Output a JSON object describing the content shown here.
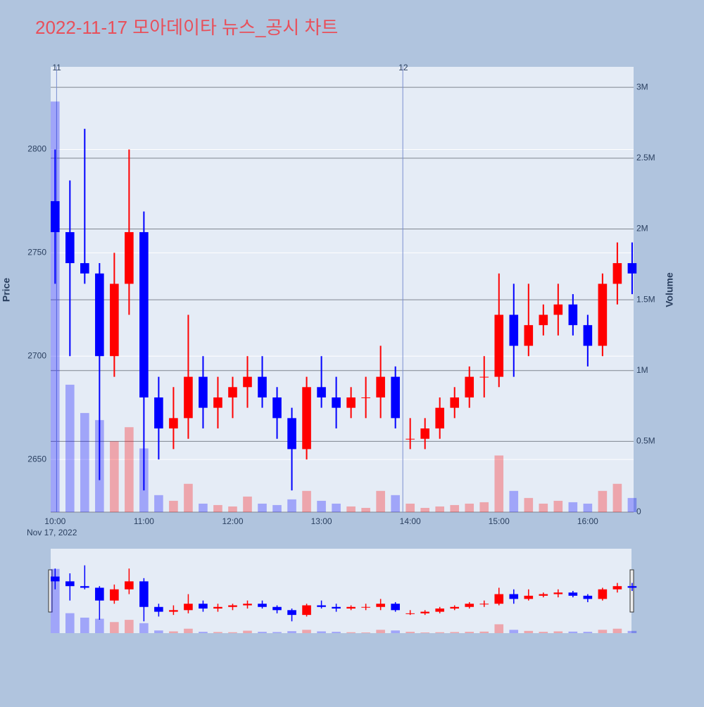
{
  "chart_data": {
    "type": "candlestick",
    "title": "2022-11-17 모아데이타 뉴스_공시 차트",
    "y_title": "Price",
    "y2_title": "Volume",
    "x_date_label": "Nov 17, 2022",
    "x": [
      "2022-11-17 10:00",
      "2022-11-17 10:10",
      "2022-11-17 10:20",
      "2022-11-17 10:30",
      "2022-11-17 10:40",
      "2022-11-17 10:50",
      "2022-11-17 11:00",
      "2022-11-17 11:10",
      "2022-11-17 11:20",
      "2022-11-17 11:30",
      "2022-11-17 11:40",
      "2022-11-17 11:50",
      "2022-11-17 12:00",
      "2022-11-17 12:10",
      "2022-11-17 12:20",
      "2022-11-17 12:30",
      "2022-11-17 12:40",
      "2022-11-17 12:50",
      "2022-11-17 13:00",
      "2022-11-17 13:10",
      "2022-11-17 13:20",
      "2022-11-17 13:30",
      "2022-11-17 13:40",
      "2022-11-17 13:50",
      "2022-11-17 14:00",
      "2022-11-17 14:10",
      "2022-11-17 14:20",
      "2022-11-17 14:30",
      "2022-11-17 14:40",
      "2022-11-17 14:50",
      "2022-11-17 15:00",
      "2022-11-17 15:10",
      "2022-11-17 15:20",
      "2022-11-17 15:30",
      "2022-11-17 15:40",
      "2022-11-17 15:50",
      "2022-11-17 16:00",
      "2022-11-17 16:10",
      "2022-11-17 16:20",
      "2022-11-17 16:30"
    ],
    "open": [
      2775,
      2760,
      2745,
      2740,
      2700,
      2735,
      2760,
      2680,
      2665,
      2670,
      2690,
      2675,
      2680,
      2685,
      2690,
      2680,
      2670,
      2655,
      2685,
      2680,
      2675,
      2680,
      2680,
      2690,
      2660,
      2660,
      2665,
      2675,
      2680,
      2690,
      2690,
      2720,
      2705,
      2715,
      2720,
      2725,
      2715,
      2705,
      2735,
      2745
    ],
    "high": [
      2800,
      2785,
      2810,
      2745,
      2750,
      2800,
      2770,
      2690,
      2685,
      2720,
      2700,
      2690,
      2690,
      2700,
      2700,
      2685,
      2675,
      2690,
      2700,
      2690,
      2685,
      2690,
      2705,
      2695,
      2670,
      2670,
      2680,
      2685,
      2695,
      2700,
      2740,
      2735,
      2735,
      2725,
      2735,
      2730,
      2720,
      2740,
      2755,
      2755
    ],
    "low": [
      2735,
      2700,
      2735,
      2640,
      2690,
      2720,
      2635,
      2650,
      2655,
      2660,
      2665,
      2665,
      2670,
      2675,
      2675,
      2660,
      2635,
      2650,
      2675,
      2665,
      2670,
      2670,
      2670,
      2665,
      2655,
      2655,
      2660,
      2670,
      2675,
      2680,
      2685,
      2690,
      2700,
      2710,
      2710,
      2710,
      2695,
      2700,
      2725,
      2730
    ],
    "close": [
      2760,
      2745,
      2740,
      2700,
      2735,
      2760,
      2680,
      2665,
      2670,
      2690,
      2675,
      2680,
      2685,
      2690,
      2680,
      2670,
      2655,
      2685,
      2680,
      2675,
      2680,
      2680,
      2690,
      2670,
      2660,
      2665,
      2675,
      2680,
      2690,
      2690,
      2720,
      2705,
      2715,
      2720,
      2725,
      2715,
      2705,
      2735,
      2745,
      2740
    ],
    "volume": [
      2900000,
      900000,
      700000,
      650000,
      500000,
      600000,
      450000,
      120000,
      80000,
      200000,
      60000,
      50000,
      40000,
      110000,
      60000,
      50000,
      90000,
      150000,
      80000,
      60000,
      40000,
      30000,
      150000,
      120000,
      60000,
      30000,
      40000,
      50000,
      60000,
      70000,
      400000,
      150000,
      100000,
      60000,
      80000,
      70000,
      60000,
      150000,
      200000,
      100000
    ],
    "increasing_color": "#ff0000",
    "decreasing_color": "#0000ff",
    "xlim": [
      "2022-11-17 09:57",
      "2022-11-17 16:31"
    ],
    "xticks": [
      {
        "value": "2022-11-17 10:00",
        "label": "10:00"
      },
      {
        "value": "2022-11-17 11:00",
        "label": "11:00"
      },
      {
        "value": "2022-11-17 12:00",
        "label": "12:00"
      },
      {
        "value": "2022-11-17 13:00",
        "label": "13:00"
      },
      {
        "value": "2022-11-17 14:00",
        "label": "14:00"
      },
      {
        "value": "2022-11-17 15:00",
        "label": "15:00"
      },
      {
        "value": "2022-11-17 16:00",
        "label": "16:00"
      }
    ],
    "ylim": [
      2624.5,
      2840
    ],
    "yticks": [
      2650,
      2700,
      2750,
      2800
    ],
    "y2lim": [
      0,
      3145000
    ],
    "y2ticks": [
      0,
      {
        "value": 500000,
        "label": "0.5M"
      },
      {
        "value": 1000000,
        "label": "1M"
      },
      {
        "value": 1500000,
        "label": "1.5M"
      },
      {
        "value": 2000000,
        "label": "2M"
      },
      {
        "value": 2500000,
        "label": "2.5M"
      },
      {
        "value": 3000000,
        "label": "3M"
      }
    ],
    "annotations": [
      {
        "x": "2022-11-17 10:01",
        "text": "11"
      },
      {
        "x": "2022-11-17 13:55",
        "text": "12"
      }
    ],
    "grid": true
  }
}
